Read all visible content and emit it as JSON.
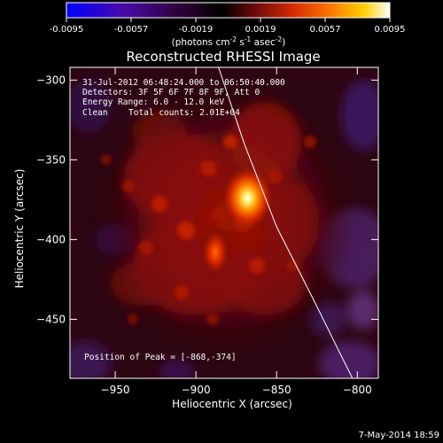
{
  "colorbar": {
    "ticks": [
      "-0.0095",
      "-0.0057",
      "-0.0019",
      "0.0019",
      "0.0057",
      "0.0095"
    ],
    "units": "(photons cm",
    "units_exp1": "-2",
    "units_mid": " s",
    "units_exp2": "-1",
    "units_end": " asec",
    "units_exp3": "-2",
    "units_close": ")",
    "colors": [
      "#0000ff",
      "#4a0aa6",
      "#2b0033",
      "#000000",
      "#6a0a0a",
      "#d42a00",
      "#ff7a00",
      "#ffd000",
      "#ffffff"
    ]
  },
  "chart_data": {
    "type": "heatmap",
    "title": "Reconstructed RHESSI Image",
    "xlabel": "Heliocentric X (arcsec)",
    "ylabel": "Heliocentric Y (arcsec)",
    "xlim": [
      -978,
      -787
    ],
    "ylim": [
      -487,
      -292
    ],
    "xticks": [
      -950,
      -900,
      -850,
      -800
    ],
    "yticks": [
      -300,
      -350,
      -400,
      -450
    ],
    "sources": [
      {
        "x": -868,
        "y": -374,
        "intensity": 1.0
      },
      {
        "x": -888,
        "y": -408,
        "intensity": 0.7
      }
    ],
    "limb_curve": [
      [
        -886,
        -292
      ],
      [
        -870,
        -340
      ],
      [
        -850,
        -392
      ],
      [
        -826,
        -440
      ],
      [
        -803,
        -487
      ]
    ],
    "annotations": {
      "time": "31-Jul-2012 06:48:24.000 to 06:50:40.000",
      "detectors": "Detectors: 3F 5F 6F 7F 8F 9F, Att 0",
      "energy": "Energy Range: 6.0 - 12.0 keV",
      "clean": "Clean",
      "counts": "Total counts: 2.01E+04",
      "peak": "Position of Peak = [-868,-374]"
    },
    "footer_date": "7-May-2014 18:59"
  }
}
